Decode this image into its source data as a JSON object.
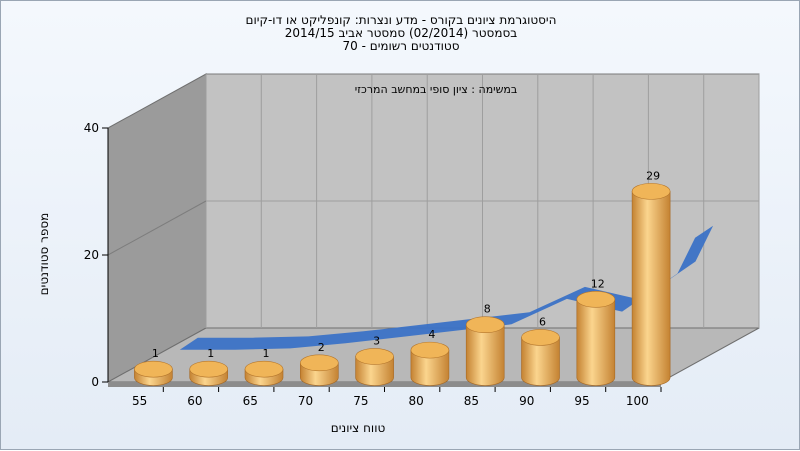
{
  "chart_data": {
    "type": "bar",
    "title": [
      "היסטוגרמת ציונים בקורס - מדע ונצרות: קונפליקט או דו-קיום",
      "בסמסטר (02/2014)  סמסטר אביב 2014/15",
      "סטודנטים רשומים - 70"
    ],
    "subtitle": "במשימה : ציון סופי במחשב המרכזי",
    "xlabel": "טווח ציונים",
    "ylabel": "מספר סטודנטים",
    "categories": [
      "55",
      "60",
      "65",
      "70",
      "75",
      "80",
      "85",
      "90",
      "95",
      "100"
    ],
    "values": [
      1,
      1,
      1,
      2,
      3,
      4,
      8,
      6,
      12,
      29
    ],
    "ylim": [
      0,
      40
    ],
    "yticks": [
      "0",
      "20",
      "40"
    ],
    "trend": [
      0,
      0,
      0.2,
      1,
      2,
      3,
      4,
      8,
      6,
      12
    ],
    "grid": true,
    "colors": {
      "bar": "#f0b558",
      "bar_dark": "#c48232",
      "bar_light": "#fbd58e",
      "trend": "#3b72c6",
      "back_wall": "#c2c2c2",
      "side_wall": "#9b9b9b",
      "floor": "#b8b8b8"
    }
  }
}
